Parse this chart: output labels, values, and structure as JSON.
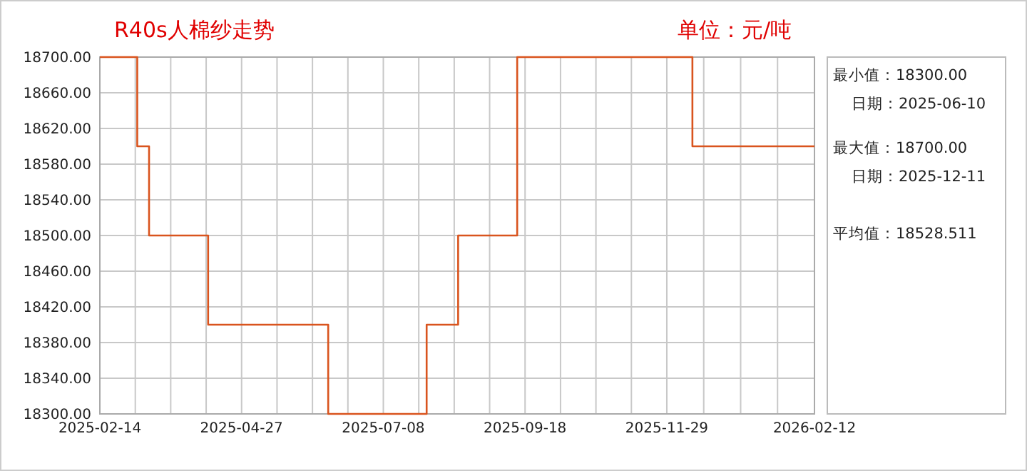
{
  "chart_data": {
    "type": "step",
    "title": "R40s人棉纱走势",
    "subtitle": "单位：元/吨",
    "x": [
      "2025-02-14",
      "2025-03-05",
      "2025-03-11",
      "2025-04-10",
      "2025-06-10",
      "2025-07-30",
      "2025-08-15",
      "2025-09-14",
      "2025-12-12",
      "2026-02-12"
    ],
    "series": [
      {
        "color": "#d9541e",
        "values": [
          18700,
          18600,
          18500,
          18400,
          18300,
          18400,
          18500,
          18700,
          18600,
          18600
        ]
      }
    ],
    "xlim": [
      "2025-02-14",
      "2026-02-12"
    ],
    "xticks": [
      {
        "value": "2025-02-14",
        "label": "2025-02-14"
      },
      {
        "value": "2025-04-27",
        "label": "2025-04-27"
      },
      {
        "value": "2025-07-08",
        "label": "2025-07-08"
      },
      {
        "value": "2025-09-18",
        "label": "2025-09-18"
      },
      {
        "value": "2025-11-29",
        "label": "2025-11-29"
      },
      {
        "value": "2026-02-12",
        "label": "2026-02-12"
      }
    ],
    "ylim": [
      18300,
      18700
    ],
    "yticks": [
      {
        "value": 18300,
        "label": "18300.00"
      },
      {
        "value": 18340,
        "label": "18340.00"
      },
      {
        "value": 18380,
        "label": "18380.00"
      },
      {
        "value": 18420,
        "label": "18420.00"
      },
      {
        "value": 18460,
        "label": "18460.00"
      },
      {
        "value": 18500,
        "label": "18500.00"
      },
      {
        "value": 18540,
        "label": "18540.00"
      },
      {
        "value": 18580,
        "label": "18580.00"
      },
      {
        "value": 18620,
        "label": "18620.00"
      },
      {
        "value": 18660,
        "label": "18660.00"
      },
      {
        "value": 18700,
        "label": "18700.00"
      }
    ],
    "grid": true,
    "annotations": [
      "最小值：18300.00",
      "日期：2025-06-10",
      "最大值：18700.00",
      "日期：2025-12-11",
      "平均值：18528.511"
    ]
  }
}
